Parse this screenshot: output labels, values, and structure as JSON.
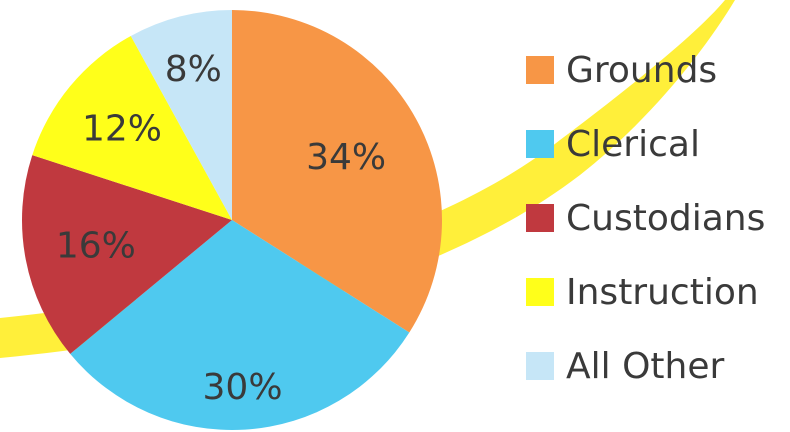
{
  "chart_data": {
    "type": "pie",
    "categories": [
      "Grounds",
      "Clerical",
      "Custodians",
      "Instruction",
      "All Other"
    ],
    "values": [
      34,
      30,
      16,
      12,
      8
    ],
    "labels": [
      "34%",
      "30%",
      "16%",
      "12%",
      "8%"
    ],
    "colors": [
      "#f79646",
      "#4fc9ef",
      "#c0393f",
      "#ffff1a",
      "#c6e6f7"
    ],
    "title": "",
    "legend_position": "right"
  },
  "decoration": {
    "swoosh_color": "#ffef3a"
  }
}
